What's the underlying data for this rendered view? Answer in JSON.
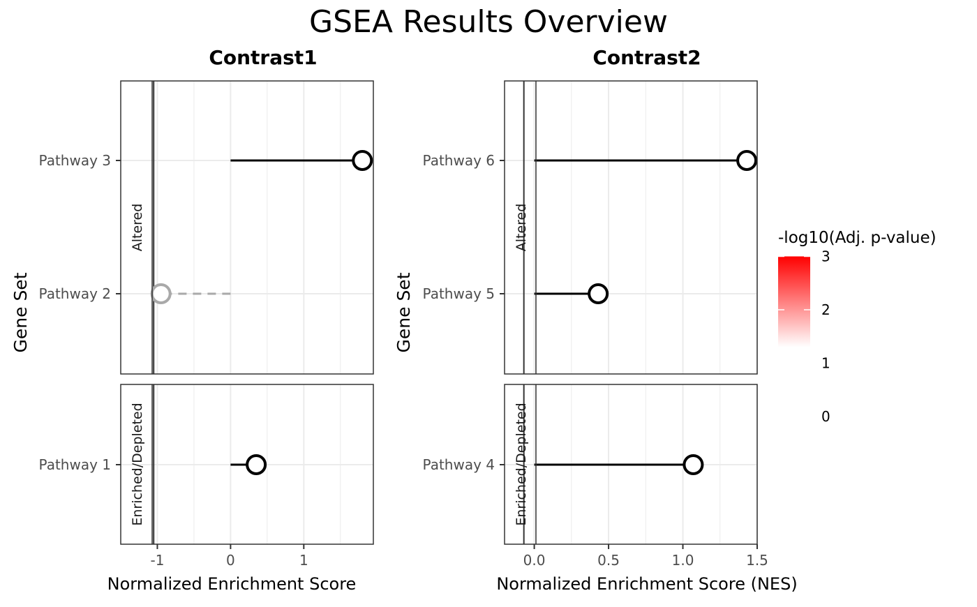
{
  "title": "GSEA Results Overview",
  "ylabel": "Gene Set",
  "legend": {
    "title": "-log10(Adj. p-value)",
    "ticks": [
      "3",
      "2",
      "1",
      "0"
    ],
    "high_color": "#ff0000",
    "low_color": "#ffffff",
    "range": [
      1.3,
      3
    ]
  },
  "colors": {
    "significant": "#000000",
    "not_significant": "#a9a9a9",
    "grid": "#ebebeb"
  },
  "chart_data": [
    {
      "type": "lollipop",
      "title": "Contrast1",
      "xlabel": "Normalized Enrichment Score",
      "xlim": [
        -1.5,
        1.95
      ],
      "xticks": [
        -1,
        0,
        1
      ],
      "xtick_labels": [
        "-1",
        "0",
        "1"
      ],
      "vline": -1.05,
      "facets": [
        {
          "label": "Altered",
          "pathways": [
            {
              "name": "Pathway 3",
              "nes": 1.8,
              "significant": true
            },
            {
              "name": "Pathway 2",
              "nes": -0.95,
              "significant": false
            }
          ]
        },
        {
          "label": "Enriched/Depleted",
          "pathways": [
            {
              "name": "Pathway 1",
              "nes": 0.35,
              "significant": true
            }
          ]
        }
      ]
    },
    {
      "type": "lollipop",
      "title": "Contrast2",
      "xlabel": "Normalized Enrichment Score (NES)",
      "xlim": [
        -0.2,
        1.5
      ],
      "xticks": [
        0,
        0.5,
        1,
        1.5
      ],
      "xtick_labels": [
        "0.0",
        "0.5",
        "1.0",
        "1.5"
      ],
      "vline": -0.07,
      "facets": [
        {
          "label": "Altered",
          "pathways": [
            {
              "name": "Pathway 6",
              "nes": 1.43,
              "significant": true
            },
            {
              "name": "Pathway 5",
              "nes": 0.43,
              "significant": true
            }
          ]
        },
        {
          "label": "Enriched/Depleted",
          "pathways": [
            {
              "name": "Pathway 4",
              "nes": 1.07,
              "significant": true
            }
          ]
        }
      ]
    }
  ]
}
